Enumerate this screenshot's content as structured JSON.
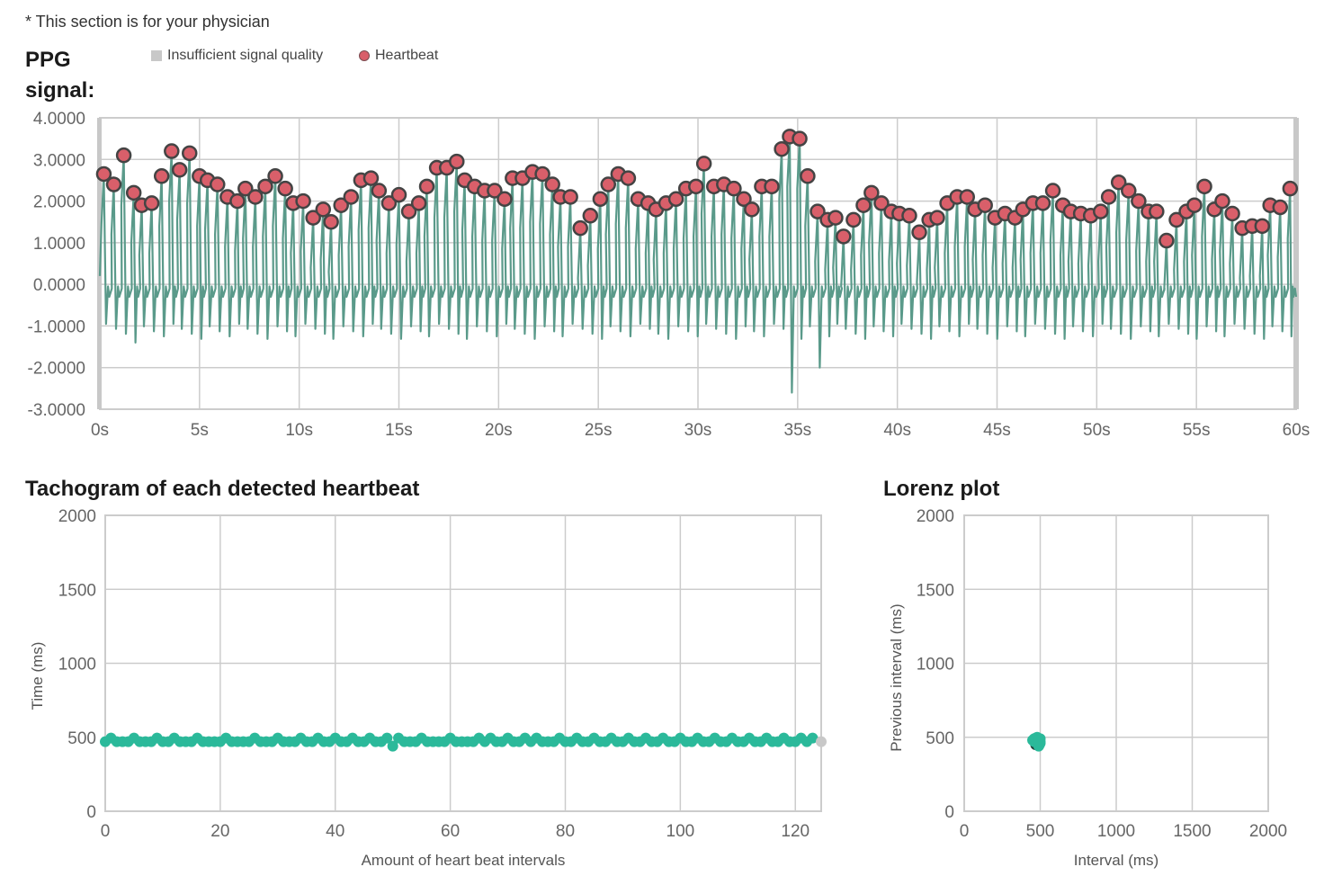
{
  "header": {
    "note": "* This section is for your physician",
    "ppg_title": "PPG signal:",
    "legend_insufficient": "Insufficient signal quality",
    "legend_heartbeat": "Heartbeat"
  },
  "tachogram_title": "Tachogram of each detected heartbeat",
  "lorenz_title": "Lorenz plot",
  "colors": {
    "signal": "#5a9a8a",
    "heartbeat_fill": "#d95f6a",
    "heartbeat_stroke": "#444444",
    "tacho_point": "#2bb99a",
    "insufficient": "#c8c8c8",
    "grid": "#cccccc"
  },
  "chart_data": [
    {
      "type": "line",
      "name": "ppg",
      "x_ticks": [
        "0s",
        "5s",
        "10s",
        "15s",
        "20s",
        "25s",
        "30s",
        "35s",
        "40s",
        "45s",
        "50s",
        "55s",
        "60s"
      ],
      "y_ticks": [
        "4.0000",
        "3.0000",
        "2.0000",
        "1.0000",
        "0.0000",
        "-1.0000",
        "-2.0000",
        "-3.0000"
      ],
      "xlim": [
        0,
        60
      ],
      "ylim": [
        -3,
        4
      ],
      "heartbeats": [
        [
          0.2,
          2.65
        ],
        [
          0.7,
          2.4
        ],
        [
          1.2,
          3.1
        ],
        [
          1.7,
          2.2
        ],
        [
          2.1,
          1.9
        ],
        [
          2.6,
          1.95
        ],
        [
          3.1,
          2.6
        ],
        [
          3.6,
          3.2
        ],
        [
          4.0,
          2.75
        ],
        [
          4.5,
          3.15
        ],
        [
          5.0,
          2.6
        ],
        [
          5.4,
          2.5
        ],
        [
          5.9,
          2.4
        ],
        [
          6.4,
          2.1
        ],
        [
          6.9,
          2.0
        ],
        [
          7.3,
          2.3
        ],
        [
          7.8,
          2.1
        ],
        [
          8.3,
          2.35
        ],
        [
          8.8,
          2.6
        ],
        [
          9.3,
          2.3
        ],
        [
          9.7,
          1.95
        ],
        [
          10.2,
          2.0
        ],
        [
          10.7,
          1.6
        ],
        [
          11.2,
          1.8
        ],
        [
          11.6,
          1.5
        ],
        [
          12.1,
          1.9
        ],
        [
          12.6,
          2.1
        ],
        [
          13.1,
          2.5
        ],
        [
          13.6,
          2.55
        ],
        [
          14.0,
          2.25
        ],
        [
          14.5,
          1.95
        ],
        [
          15.0,
          2.15
        ],
        [
          15.5,
          1.75
        ],
        [
          16.0,
          1.95
        ],
        [
          16.4,
          2.35
        ],
        [
          16.9,
          2.8
        ],
        [
          17.4,
          2.8
        ],
        [
          17.9,
          2.95
        ],
        [
          18.3,
          2.5
        ],
        [
          18.8,
          2.35
        ],
        [
          19.3,
          2.25
        ],
        [
          19.8,
          2.25
        ],
        [
          20.3,
          2.05
        ],
        [
          20.7,
          2.55
        ],
        [
          21.2,
          2.55
        ],
        [
          21.7,
          2.7
        ],
        [
          22.2,
          2.65
        ],
        [
          22.7,
          2.4
        ],
        [
          23.1,
          2.1
        ],
        [
          23.6,
          2.1
        ],
        [
          24.1,
          1.35
        ],
        [
          24.6,
          1.65
        ],
        [
          25.1,
          2.05
        ],
        [
          25.5,
          2.4
        ],
        [
          26.0,
          2.65
        ],
        [
          26.5,
          2.55
        ],
        [
          27.0,
          2.05
        ],
        [
          27.5,
          1.95
        ],
        [
          27.9,
          1.8
        ],
        [
          28.4,
          1.95
        ],
        [
          28.9,
          2.05
        ],
        [
          29.4,
          2.3
        ],
        [
          29.9,
          2.35
        ],
        [
          30.3,
          2.9
        ],
        [
          30.8,
          2.35
        ],
        [
          31.3,
          2.4
        ],
        [
          31.8,
          2.3
        ],
        [
          32.3,
          2.05
        ],
        [
          32.7,
          1.8
        ],
        [
          33.2,
          2.35
        ],
        [
          33.7,
          2.35
        ],
        [
          34.2,
          3.25
        ],
        [
          34.6,
          3.55
        ],
        [
          35.1,
          3.5
        ],
        [
          35.5,
          2.6
        ],
        [
          36.0,
          1.75
        ],
        [
          36.5,
          1.55
        ],
        [
          36.9,
          1.6
        ],
        [
          37.3,
          1.15
        ],
        [
          37.8,
          1.55
        ],
        [
          38.3,
          1.9
        ],
        [
          38.7,
          2.2
        ],
        [
          39.2,
          1.95
        ],
        [
          39.7,
          1.75
        ],
        [
          40.1,
          1.7
        ],
        [
          40.6,
          1.65
        ],
        [
          41.1,
          1.25
        ],
        [
          41.6,
          1.55
        ],
        [
          42.0,
          1.6
        ],
        [
          42.5,
          1.95
        ],
        [
          43.0,
          2.1
        ],
        [
          43.5,
          2.1
        ],
        [
          43.9,
          1.8
        ],
        [
          44.4,
          1.9
        ],
        [
          44.9,
          1.6
        ],
        [
          45.4,
          1.7
        ],
        [
          45.9,
          1.6
        ],
        [
          46.3,
          1.8
        ],
        [
          46.8,
          1.95
        ],
        [
          47.3,
          1.95
        ],
        [
          47.8,
          2.25
        ],
        [
          48.3,
          1.9
        ],
        [
          48.7,
          1.75
        ],
        [
          49.2,
          1.7
        ],
        [
          49.7,
          1.65
        ],
        [
          50.2,
          1.75
        ],
        [
          50.6,
          2.1
        ],
        [
          51.1,
          2.45
        ],
        [
          51.6,
          2.25
        ],
        [
          52.1,
          2.0
        ],
        [
          52.6,
          1.75
        ],
        [
          53.0,
          1.75
        ],
        [
          53.5,
          1.05
        ],
        [
          54.0,
          1.55
        ],
        [
          54.5,
          1.75
        ],
        [
          54.9,
          1.9
        ],
        [
          55.4,
          2.35
        ],
        [
          55.9,
          1.8
        ],
        [
          56.3,
          2.0
        ],
        [
          56.8,
          1.7
        ],
        [
          57.3,
          1.35
        ],
        [
          57.8,
          1.4
        ],
        [
          58.3,
          1.4
        ],
        [
          58.7,
          1.9
        ],
        [
          59.2,
          1.85
        ],
        [
          59.7,
          2.3
        ]
      ]
    },
    {
      "type": "scatter",
      "name": "tachogram",
      "title": "Tachogram of each detected heartbeat",
      "xlabel": "Amount of heart beat intervals",
      "ylabel": "Time (ms)",
      "x_ticks": [
        "0",
        "20",
        "40",
        "60",
        "80",
        "100",
        "120"
      ],
      "y_ticks": [
        "2000",
        "1500",
        "1000",
        "500",
        "0"
      ],
      "xlim": [
        0,
        124.5
      ],
      "ylim": [
        0,
        2000
      ],
      "baseline_ms": 470,
      "peak_ms": 495,
      "peak_indices": [
        1,
        5,
        9,
        12,
        16,
        21,
        26,
        30,
        34,
        37,
        40,
        43,
        46,
        49,
        51,
        55,
        60,
        65,
        67,
        70,
        73,
        75,
        79,
        82,
        85,
        88,
        91,
        94,
        97,
        100,
        103,
        106,
        109,
        112,
        115,
        118,
        121,
        123
      ],
      "low_points": [
        [
          50,
          440
        ]
      ],
      "last_gray_index": 124.5
    },
    {
      "type": "scatter",
      "name": "lorenz",
      "title": "Lorenz plot",
      "xlabel": "Interval (ms)",
      "ylabel": "Previous interval (ms)",
      "x_ticks": [
        "0",
        "500",
        "1000",
        "1500",
        "2000"
      ],
      "y_ticks": [
        "2000",
        "1500",
        "1000",
        "500",
        "0"
      ],
      "xlim": [
        0,
        2000
      ],
      "ylim": [
        0,
        2000
      ],
      "points": [
        [
          450,
          480
        ],
        [
          460,
          490
        ],
        [
          470,
          470
        ],
        [
          480,
          500
        ],
        [
          490,
          470
        ],
        [
          500,
          460
        ],
        [
          495,
          450
        ],
        [
          470,
          495
        ],
        [
          480,
          480
        ],
        [
          500,
          490
        ],
        [
          460,
          470
        ],
        [
          490,
          440
        ],
        [
          480,
          460
        ],
        [
          500,
          470
        ],
        [
          470,
          480
        ],
        [
          485,
          475
        ]
      ],
      "dark_points": [
        [
          470,
          450
        ]
      ]
    }
  ]
}
